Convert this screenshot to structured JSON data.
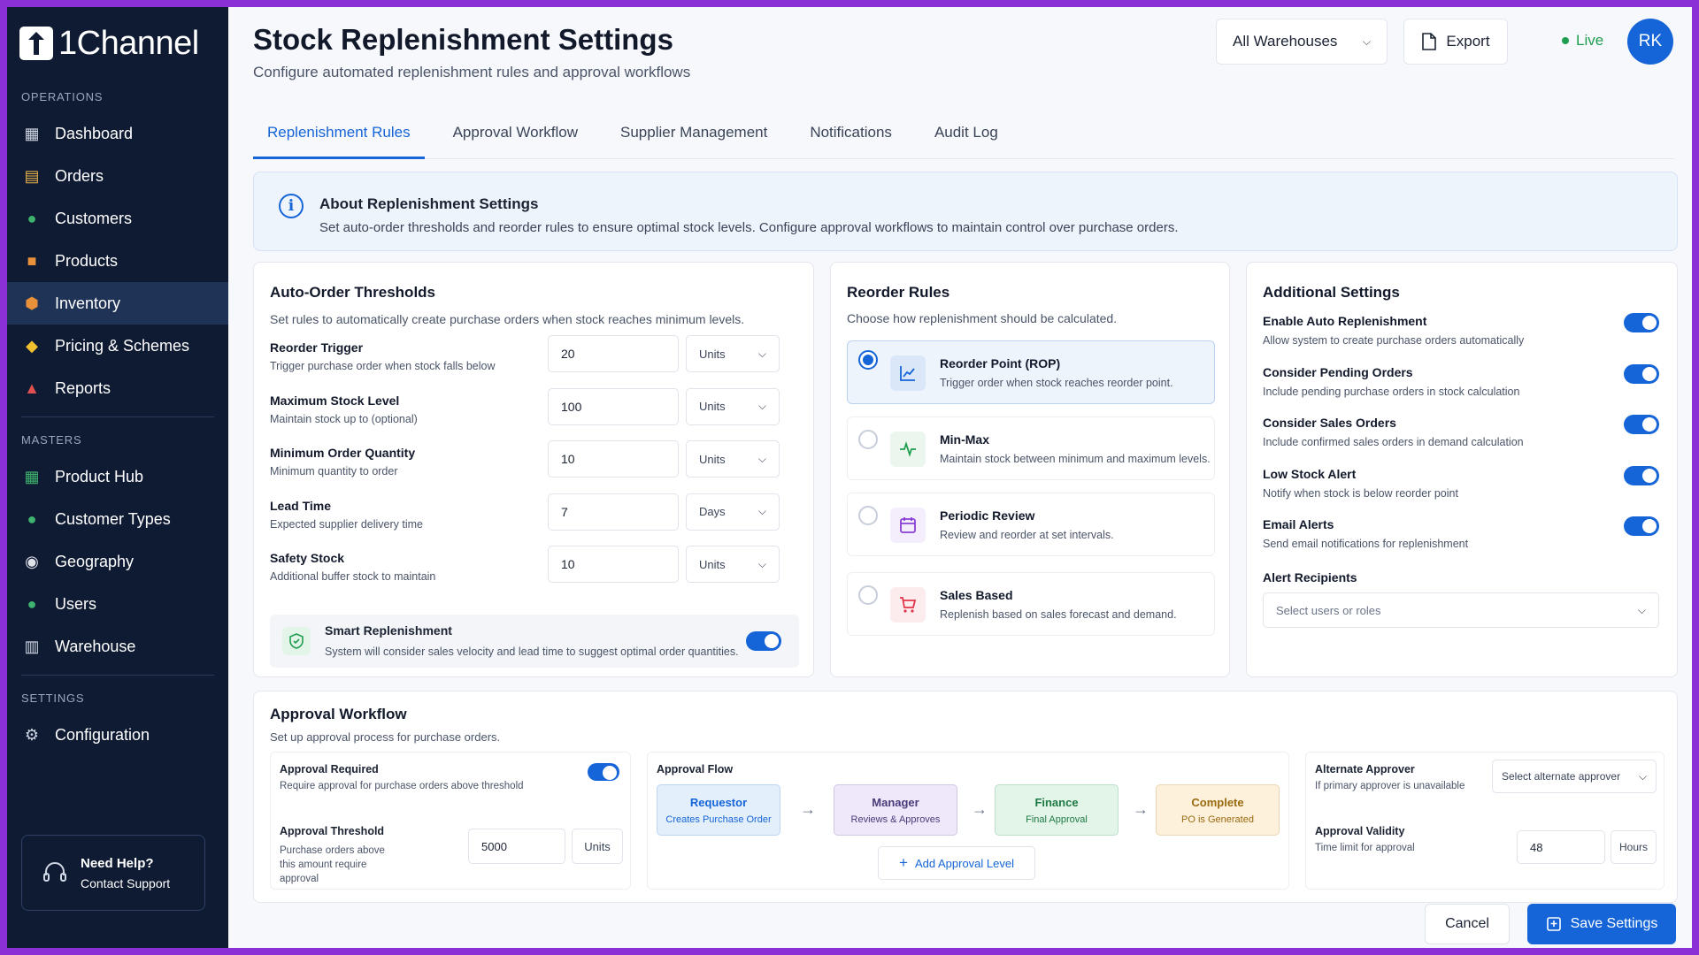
{
  "app": {
    "name": "1Channel"
  },
  "sidebar": {
    "sections": [
      {
        "title": "OPERATIONS",
        "items": [
          "Dashboard",
          "Orders",
          "Customers",
          "Products",
          "Inventory",
          "Pricing & Schemes",
          "Reports"
        ]
      },
      {
        "title": "MASTERS",
        "items": [
          "Product Hub",
          "Customer Types",
          "Geography",
          "Users",
          "Warehouse"
        ]
      },
      {
        "title": "SETTINGS",
        "items": [
          "Configuration"
        ]
      }
    ],
    "active_item": "Inventory",
    "help": {
      "title": "Need Help?",
      "link": "Contact Support"
    }
  },
  "header": {
    "title": "Stock Replenishment Settings",
    "subtitle": "Configure automated replenishment rules and approval workflows",
    "warehouse_select": "All Warehouses",
    "export_label": "Export",
    "status": "Live",
    "avatar_initials": "RK"
  },
  "tabs": [
    "Replenishment Rules",
    "Approval Workflow",
    "Supplier Management",
    "Notifications",
    "Audit Log"
  ],
  "active_tab": "Replenishment Rules",
  "info": {
    "title": "About Replenishment Settings",
    "text": "Set auto-order thresholds and reorder rules to ensure optimal stock levels. Configure approval workflows to maintain control over purchase orders."
  },
  "thresholds": {
    "title": "Auto-Order Thresholds",
    "subtitle": "Set rules to automatically create purchase orders when stock reaches minimum levels.",
    "fields": [
      {
        "label": "Reorder Trigger",
        "help": "Trigger purchase order when stock falls below",
        "value": "20",
        "unit": "Units"
      },
      {
        "label": "Maximum Stock Level",
        "help": "Maintain stock up to (optional)",
        "value": "100",
        "unit": "Units"
      },
      {
        "label": "Minimum Order Quantity",
        "help": "Minimum quantity to order",
        "value": "10",
        "unit": "Units"
      },
      {
        "label": "Lead Time",
        "help": "Expected supplier delivery time",
        "value": "7",
        "unit": "Days"
      },
      {
        "label": "Safety Stock",
        "help": "Additional buffer stock to maintain",
        "value": "10",
        "unit": "Units"
      }
    ],
    "smart": {
      "title": "Smart Replenishment",
      "text": "System will consider sales velocity and lead time to suggest optimal order quantities.",
      "enabled": true
    }
  },
  "reorder": {
    "title": "Reorder Rules",
    "subtitle": "Choose how replenishment should be calculated.",
    "options": [
      {
        "title": "Reorder Point (ROP)",
        "desc": "Trigger order when stock reaches reorder point.",
        "selected": true,
        "icon": "chart-up-icon",
        "color": "#1565d8"
      },
      {
        "title": "Min-Max",
        "desc": "Maintain stock between minimum and maximum levels.",
        "selected": false,
        "icon": "pulse-icon",
        "color": "#1e9e4e"
      },
      {
        "title": "Periodic Review",
        "desc": "Review and reorder at set intervals.",
        "selected": false,
        "icon": "calendar-icon",
        "color": "#8b3fd6"
      },
      {
        "title": "Sales Based",
        "desc": "Replenish based on sales forecast and demand.",
        "selected": false,
        "icon": "cart-icon",
        "color": "#e0344a"
      }
    ]
  },
  "additional": {
    "title": "Additional Settings",
    "toggles": [
      {
        "label": "Enable Auto Replenishment",
        "desc": "Allow system to create purchase orders automatically",
        "on": true
      },
      {
        "label": "Consider Pending Orders",
        "desc": "Include pending purchase orders in stock calculation",
        "on": true
      },
      {
        "label": "Consider Sales Orders",
        "desc": "Include confirmed sales orders in demand calculation",
        "on": true
      },
      {
        "label": "Low Stock Alert",
        "desc": "Notify when stock is below reorder point",
        "on": true
      },
      {
        "label": "Email Alerts",
        "desc": "Send email notifications for replenishment",
        "on": true
      }
    ],
    "recipients_label": "Alert Recipients",
    "recipients_placeholder": "Select users or roles"
  },
  "approval": {
    "title": "Approval Workflow",
    "subtitle": "Set up approval process for purchase orders.",
    "required": {
      "label": "Approval Required",
      "desc": "Require approval for purchase orders above threshold",
      "on": true
    },
    "threshold": {
      "label": "Approval Threshold",
      "desc": "Purchase orders above this amount require approval",
      "value": "5000",
      "unit": "Units"
    },
    "flow_title": "Approval Flow",
    "steps": [
      {
        "name": "Requestor",
        "desc": "Creates Purchase Order",
        "bg": "#e4effc",
        "fg": "#1565d8"
      },
      {
        "name": "Manager",
        "desc": "Reviews & Approves",
        "bg": "#efe8fb",
        "fg": "#4a3a78"
      },
      {
        "name": "Finance",
        "desc": "Final Approval",
        "bg": "#e3f5e9",
        "fg": "#1e7a44"
      },
      {
        "name": "Complete",
        "desc": "PO is Generated",
        "bg": "#fdf1dc",
        "fg": "#9a6a10"
      }
    ],
    "add_level": "Add Approval Level",
    "alternate": {
      "label": "Alternate Approver",
      "desc": "If primary approver is unavailable",
      "placeholder": "Select alternate approver"
    },
    "validity": {
      "label": "Approval Validity",
      "desc": "Time limit for approval",
      "value": "48",
      "unit": "Hours"
    }
  },
  "footer": {
    "cancel": "Cancel",
    "save": "Save Settings"
  }
}
